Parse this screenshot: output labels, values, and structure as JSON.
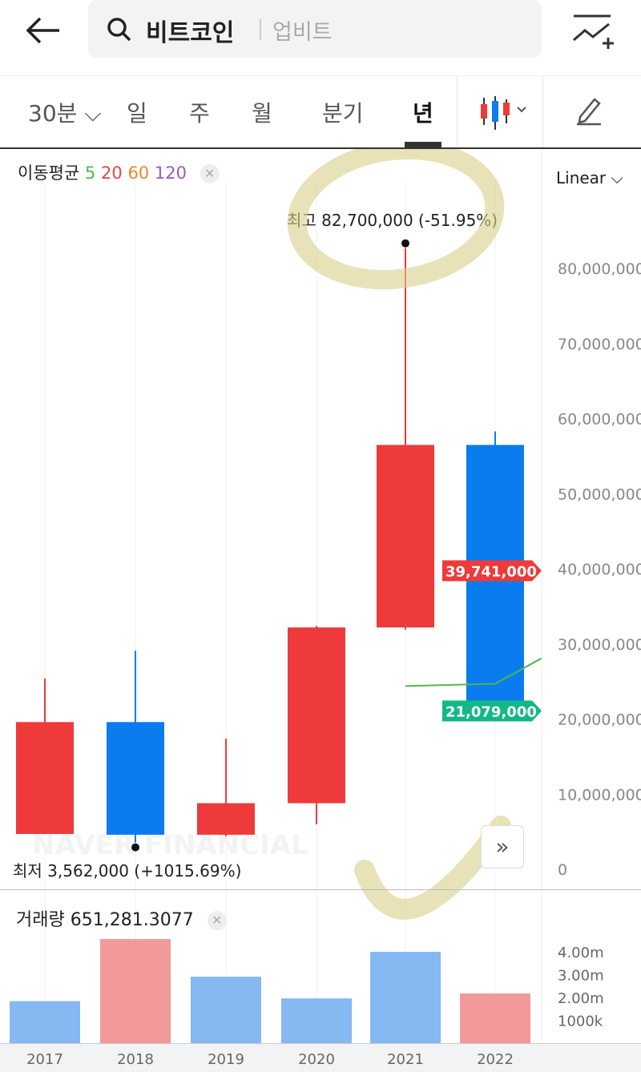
{
  "header": {
    "search_title": "비트코인",
    "exchange": "업비트"
  },
  "tabs": [
    {
      "label": "30분 ⌵"
    },
    {
      "label": "일"
    },
    {
      "label": "주"
    },
    {
      "label": "월"
    },
    {
      "label": "분기"
    },
    {
      "label": "년",
      "active": true
    }
  ],
  "ma": {
    "label": "이동평균",
    "periods": [
      {
        "v": "5",
        "color": "#4cb84c"
      },
      {
        "v": "20",
        "color": "#e04848"
      },
      {
        "v": "60",
        "color": "#e88a2e"
      },
      {
        "v": "120",
        "color": "#9b59c8"
      }
    ]
  },
  "scale": "Linear ⌵",
  "watermark": "NAVER FINANCIAL",
  "colors": {
    "up": "#ee3a3a",
    "down": "#0a7cf0",
    "ma5": "#4cb84c",
    "up_vol": "#f29a9a",
    "down_vol": "#86b8f2"
  },
  "chart_data": [
    {
      "type": "candlestick",
      "categories": [
        "2017",
        "2018",
        "2019",
        "2020",
        "2021",
        "2022"
      ],
      "ohlc": [
        {
          "open": 4700000,
          "high": 25400000,
          "low": 4700000,
          "close": 19600000
        },
        {
          "open": 19600000,
          "high": 29100000,
          "low": 3562000,
          "close": 4600000
        },
        {
          "open": 4600000,
          "high": 17400000,
          "low": 4400000,
          "close": 8800000
        },
        {
          "open": 8800000,
          "high": 32400000,
          "low": 6000000,
          "close": 32200000
        },
        {
          "open": 32200000,
          "high": 82700000,
          "low": 31900000,
          "close": 56500000
        },
        {
          "open": 56500000,
          "high": 58300000,
          "low": 20700000,
          "close": 21079000
        }
      ],
      "ma5": [
        null,
        null,
        null,
        null,
        24400000,
        24700000
      ],
      "ylim": [
        0,
        85000000
      ],
      "yticks": [
        "0",
        "10,000,000",
        "20,000,000",
        "30,000,000",
        "40,000,000",
        "50,000,000",
        "60,000,000",
        "70,000,000",
        "80,000,000"
      ],
      "ytick_values": [
        0,
        10000000,
        20000000,
        30000000,
        40000000,
        50000000,
        60000000,
        70000000,
        80000000
      ],
      "price_labels": [
        {
          "text": "39,741,000",
          "value": 39741000,
          "color": "#ee3a3a"
        },
        {
          "text": "21,079,000",
          "value": 21079000,
          "color": "#12b886"
        }
      ],
      "high_annotation": {
        "label": "최고",
        "value": "82,700,000 (-51.95%)"
      },
      "low_annotation": {
        "label": "최저",
        "value": "3,562,000 (+1015.69%)"
      }
    },
    {
      "type": "bar",
      "title": "거래량",
      "current": "651,281.3077",
      "categories": [
        "2017",
        "2018",
        "2019",
        "2020",
        "2021",
        "2022"
      ],
      "values": [
        1840000,
        4560000,
        2910000,
        1960000,
        4000000,
        2180000
      ],
      "direction": [
        "up",
        "down",
        "up",
        "up",
        "up",
        "down"
      ],
      "yticks": [
        "1000k",
        "2.00m",
        "3.00m",
        "4.00m"
      ],
      "ytick_values": [
        1000000,
        2000000,
        3000000,
        4000000
      ]
    }
  ]
}
